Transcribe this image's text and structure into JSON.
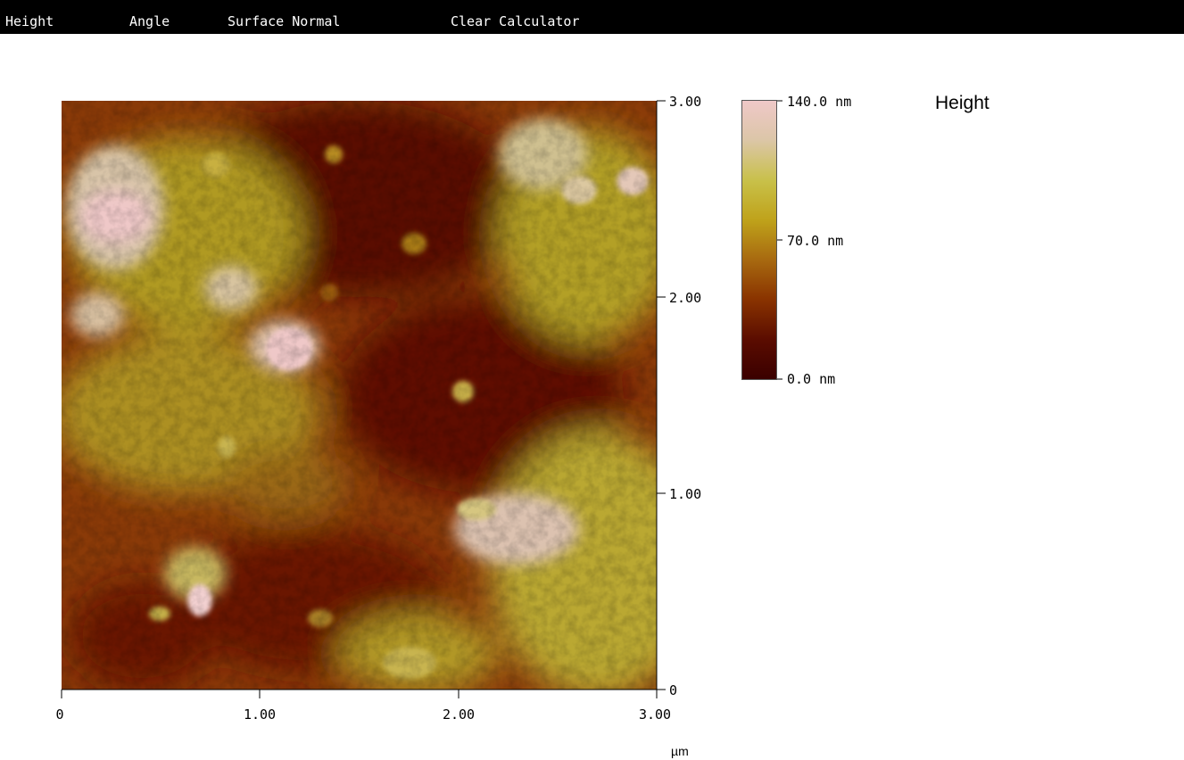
{
  "menu": {
    "items": [
      "Height",
      "Angle",
      "Surface Normal",
      "Clear Calculator"
    ]
  },
  "image": {
    "channel_title": "Height",
    "x_ticks": [
      "0",
      "1.00",
      "2.00",
      "3.00"
    ],
    "y_ticks": [
      "0",
      "1.00",
      "2.00",
      "3.00"
    ],
    "x_range_um": [
      0,
      3
    ],
    "y_range_um": [
      0,
      3
    ],
    "unit": "µm"
  },
  "colorbar": {
    "max_label": "140.0 nm",
    "mid_label": "70.0 nm",
    "min_label": "0.0 nm",
    "range_nm": [
      0,
      140
    ],
    "colors": [
      "#3a0000",
      "#5a0c00",
      "#8a3400",
      "#a86a10",
      "#bfa21a",
      "#c8c048",
      "#dcc6a8",
      "#efc8c8"
    ]
  }
}
